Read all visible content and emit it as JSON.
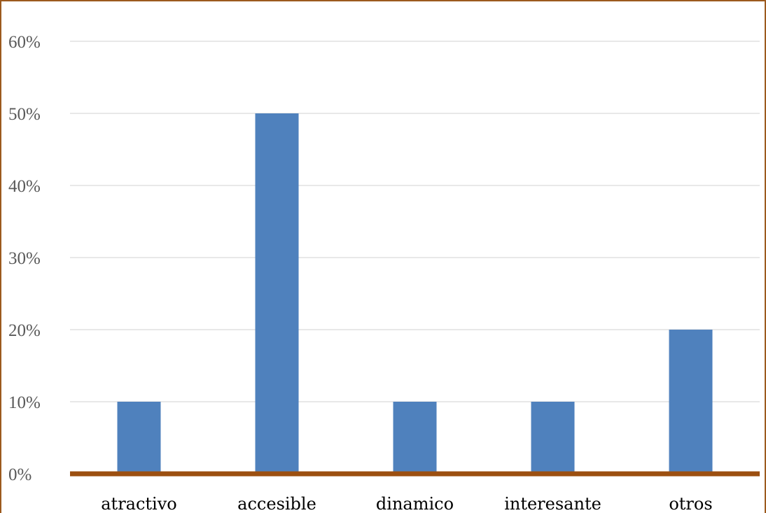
{
  "chart_data": {
    "type": "bar",
    "categories": [
      "atractivo",
      "accesible",
      "dinamico",
      "interesante",
      "otros"
    ],
    "values": [
      10,
      50,
      10,
      10,
      20
    ],
    "ylim": [
      0,
      60
    ],
    "yticks": [
      0,
      10,
      20,
      30,
      40,
      50,
      60
    ],
    "ytick_labels": [
      "0%",
      "10%",
      "20%",
      "30%",
      "40%",
      "50%",
      "60%"
    ],
    "title": "",
    "xlabel": "",
    "ylabel": "",
    "grid": true,
    "legend": "none",
    "colors": {
      "bar": "#4f81bd",
      "axis": "#9c4f10",
      "grid": "#d9d9d9",
      "frame": "#9c5a1e"
    }
  }
}
